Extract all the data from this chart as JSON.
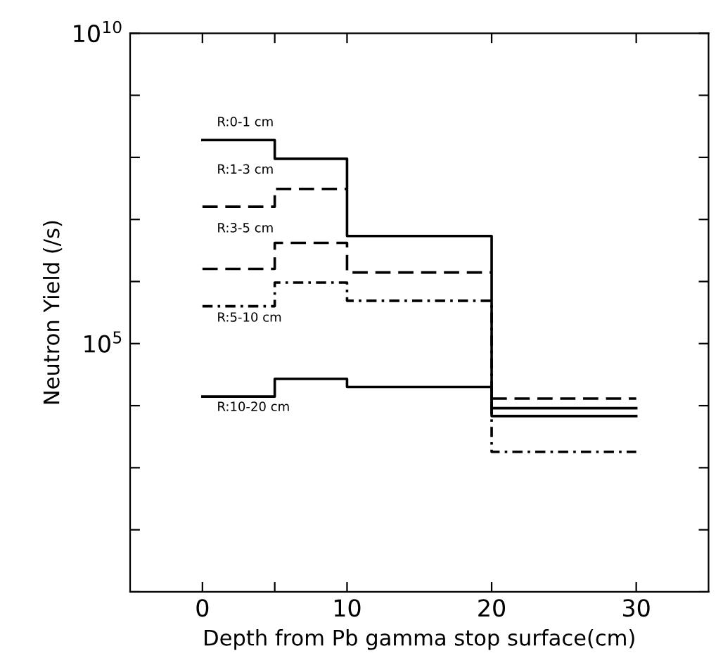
{
  "chart_data": {
    "type": "step",
    "xlabel": "Depth from Pb gamma stop surface(cm)",
    "ylabel": "Neutron Yield (/s)",
    "x": [
      0,
      5,
      10,
      20,
      30
    ],
    "series": [
      {
        "color": "#000000",
        "line_style": "solid",
        "values": [
          190000000.0,
          95000000.0,
          5400000.0,
          9100.0,
          9100.0
        ]
      },
      {
        "color": "#000000",
        "line_style": "dashed",
        "values": [
          16000000.0,
          31000000.0,
          null,
          13000.0,
          13000.0
        ]
      },
      {
        "color": "#000000",
        "line_style": "dashed",
        "x": [
          0,
          5,
          10,
          20
        ],
        "values": [
          1600000.0,
          4200000.0,
          1400000.0,
          1400000.0
        ]
      },
      {
        "color": "#000000",
        "line_style": "dotted",
        "values": [
          400000.0,
          960000.0,
          490000.0,
          1800.0,
          1800.0
        ]
      },
      {
        "color": "#000000",
        "line_style": "solid",
        "values": [
          14000.0,
          27000.0,
          20000.0,
          6800.0,
          6800.0
        ]
      }
    ],
    "annotations": [
      "R:0-1 cm",
      "R:1-3 cm",
      "R:3-5 cm",
      "R:5-10 cm",
      "R:10-20 cm"
    ],
    "log": "y",
    "xlim": [
      -5,
      35
    ],
    "xticks": [
      0,
      {
        "value": 5,
        "label": null
      },
      10,
      20,
      30
    ],
    "ylim": [
      10,
      10000000000.0
    ],
    "yticks": [
      {
        "value": 10,
        "label": null
      },
      {
        "value": 100,
        "label": null
      },
      {
        "value": 1000,
        "label": null
      },
      {
        "value": 10000,
        "label": null
      },
      {
        "value": 100000,
        "label": "10$^{5}$"
      },
      {
        "value": 1000000,
        "label": null
      },
      {
        "value": 10000000,
        "label": null
      },
      {
        "value": 100000000,
        "label": null
      },
      {
        "value": 1000000000,
        "label": null
      },
      {
        "value": 10000000000,
        "label": "10$^{10}$"
      }
    ],
    "grid": false,
    "legend": false
  }
}
